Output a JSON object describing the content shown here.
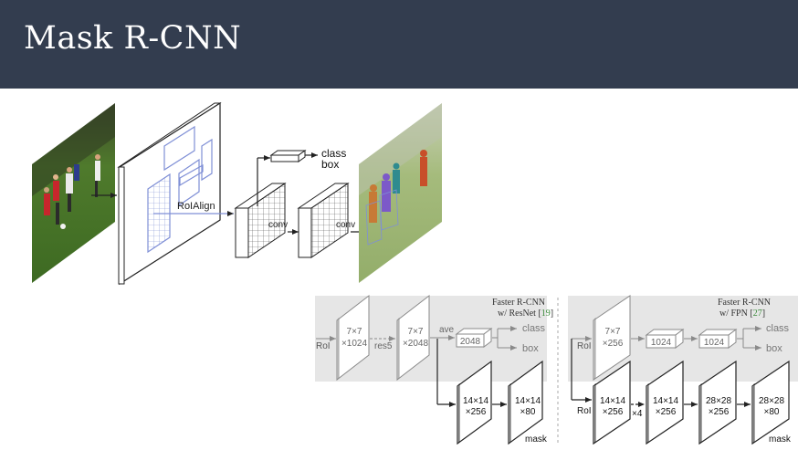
{
  "slide": {
    "title": "Mask R-CNN"
  },
  "top_diagram": {
    "roialign": "RoIAlign",
    "conv1": "conv",
    "conv2": "conv",
    "class": "class",
    "box": "box"
  },
  "head_left": {
    "title_line1": "Faster R-CNN",
    "title_line2": "w/ ResNet [",
    "ref": "19",
    "title_close": "]",
    "roi": "RoI",
    "b1_line1": "7×7",
    "b1_line2": "×1024",
    "res5": "res5",
    "b2_line1": "7×7",
    "b2_line2": "×2048",
    "ave": "ave",
    "fc": "2048",
    "class": "class",
    "box": "box",
    "m1_line1": "14×14",
    "m1_line2": "×256",
    "m2_line1": "14×14",
    "m2_line2": "×80",
    "mask": "mask"
  },
  "head_right": {
    "title_line1": "Faster R-CNN",
    "title_line2": "w/ FPN [",
    "ref": "27",
    "title_close": "]",
    "roi_top": "RoI",
    "roi_bottom": "RoI",
    "b1_line1": "7×7",
    "b1_line2": "×256",
    "fc1": "1024",
    "fc2": "1024",
    "class": "class",
    "box": "box",
    "m1_line1": "14×14",
    "m1_line2": "×256",
    "x4": "×4",
    "m2_line1": "14×14",
    "m2_line2": "×256",
    "m3_line1": "28×28",
    "m3_line2": "×256",
    "m4_line1": "28×28",
    "m4_line2": "×80",
    "mask": "mask"
  },
  "colors": {
    "title_bar": "#333d4f",
    "head_panel": "#e6e6e6",
    "ref_green": "#3a8a3a",
    "roi_box": "#7f8fd6"
  }
}
